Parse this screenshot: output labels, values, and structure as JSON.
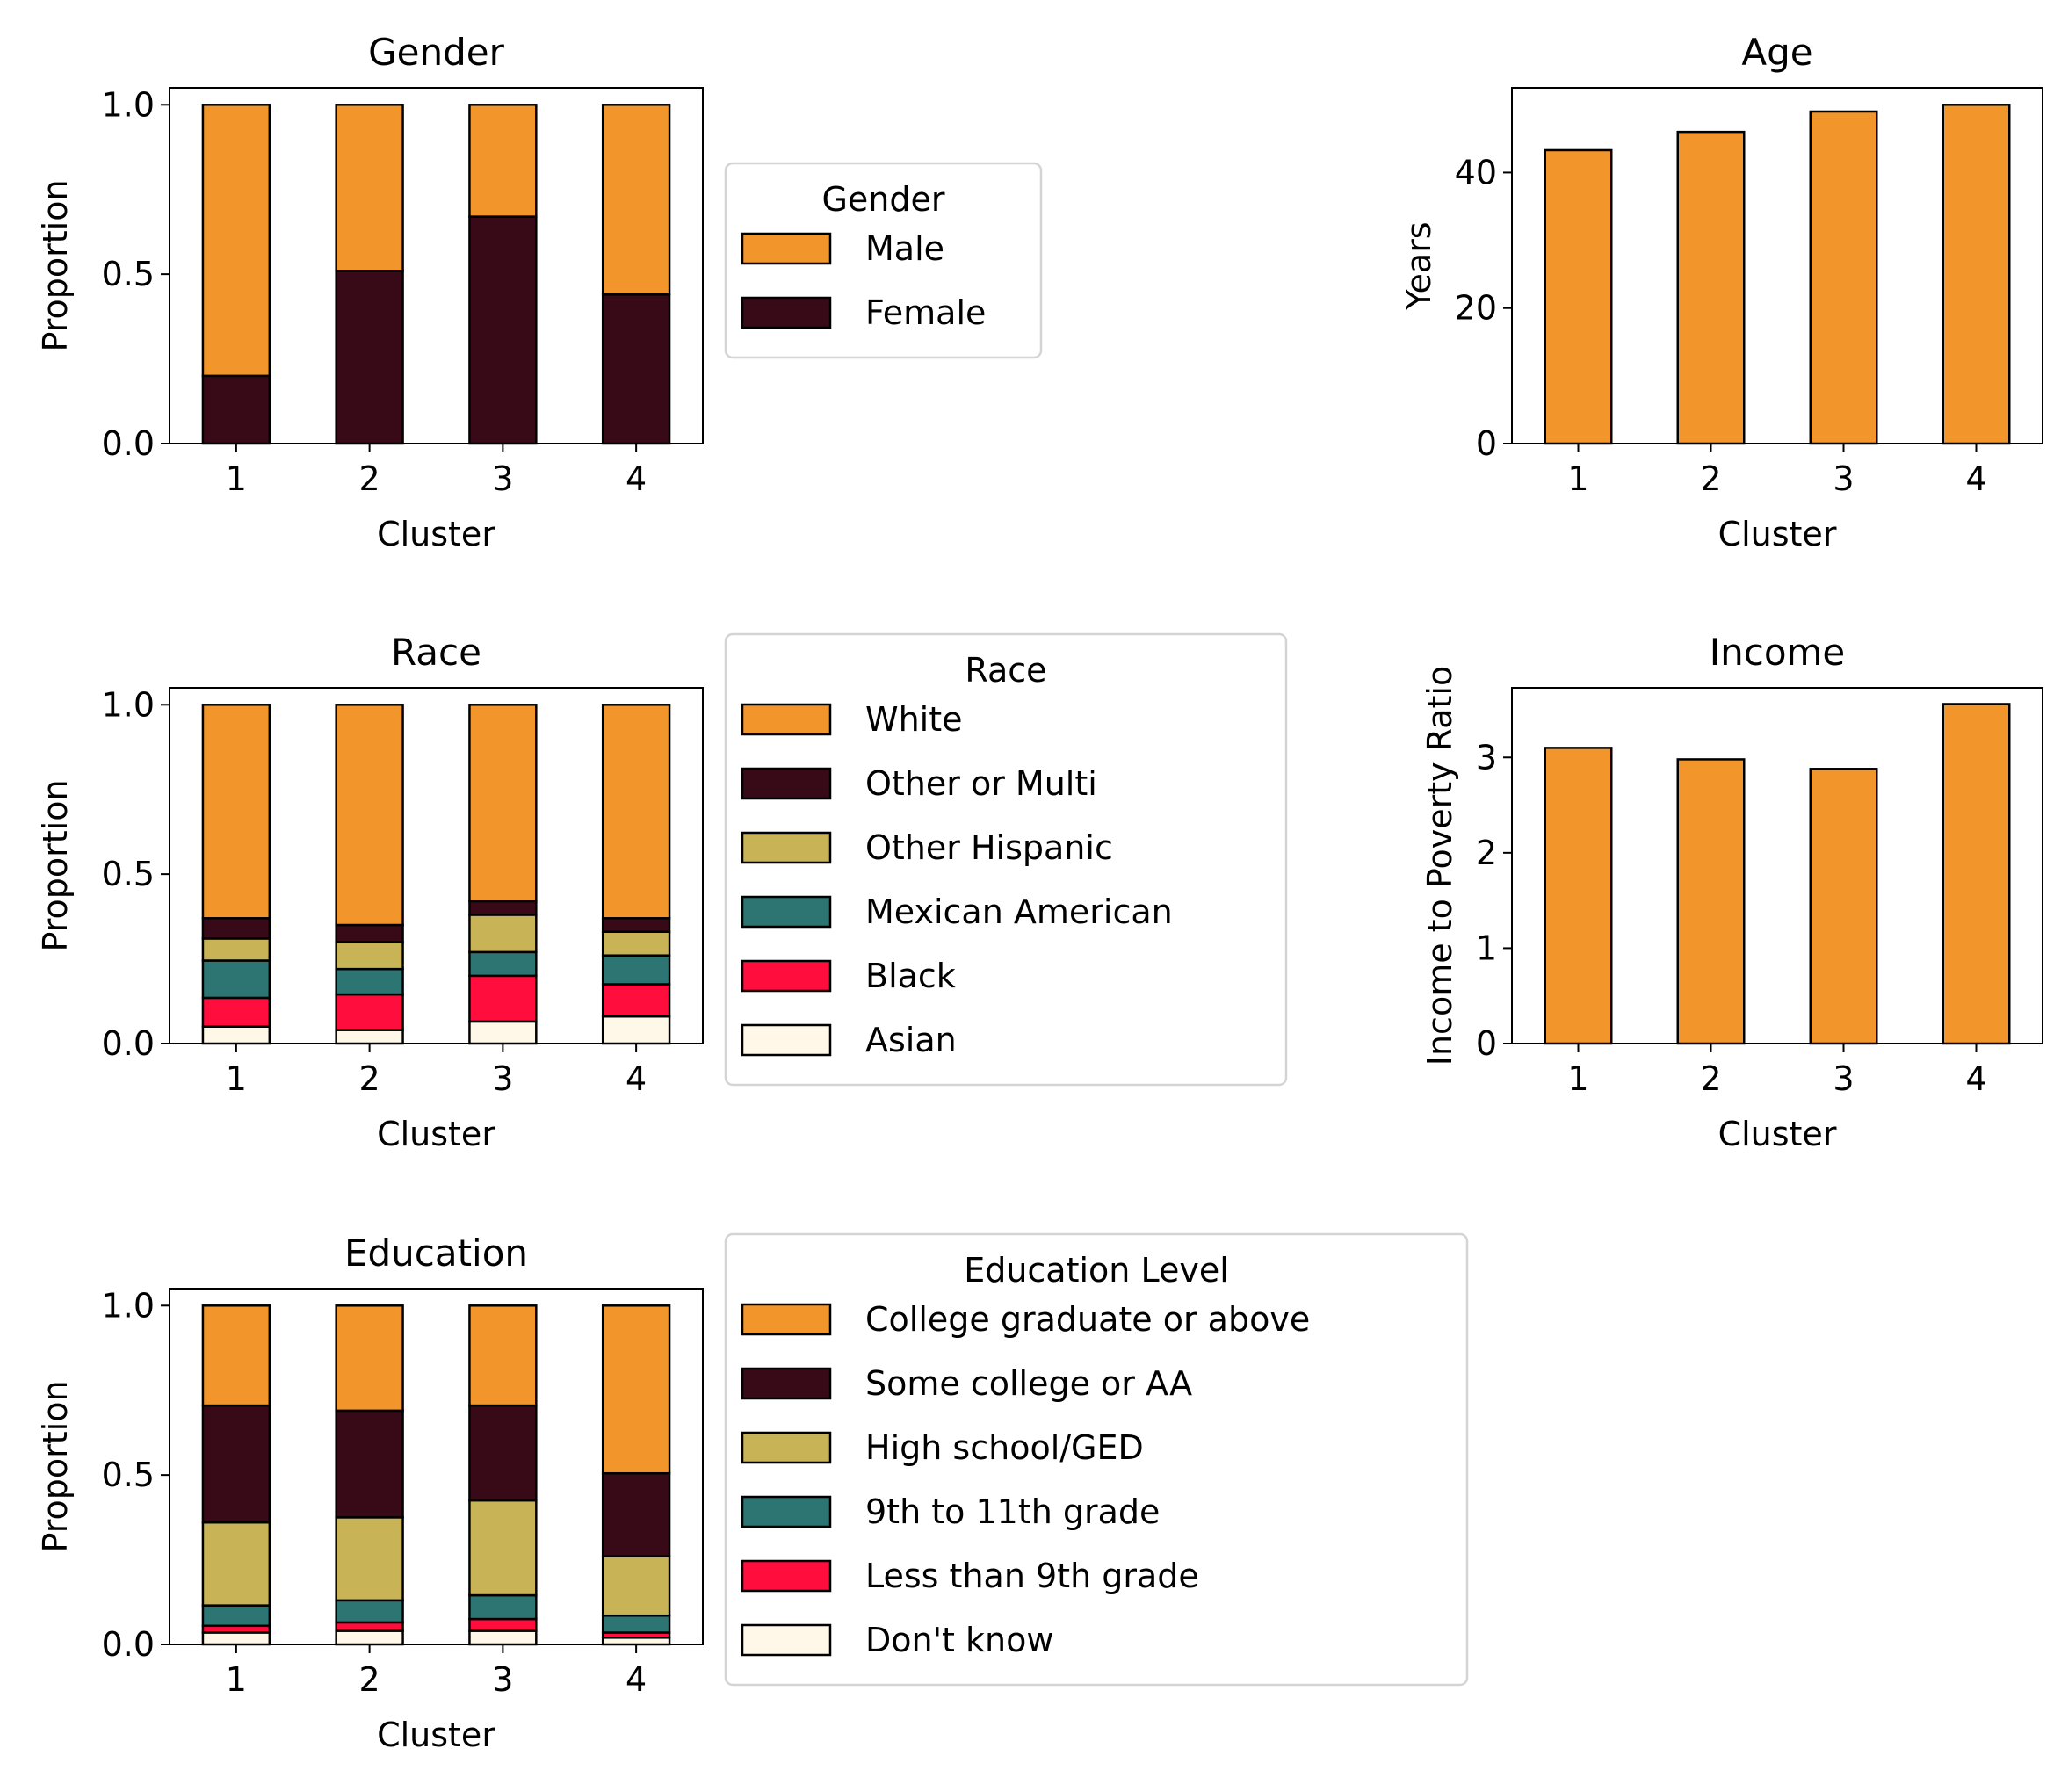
{
  "palette": {
    "orange": "#F2952A",
    "dark_maroon": "#380A17",
    "olive": "#C8B357",
    "teal": "#2C7573",
    "red": "#FF0D3D",
    "cream": "#FFF8E8",
    "edge": "#000000"
  },
  "chart_data": [
    {
      "id": "gender",
      "type": "bar",
      "stacked": true,
      "title": "Gender",
      "xlabel": "Cluster",
      "ylabel": "Proportion",
      "categories": [
        "1",
        "2",
        "3",
        "4"
      ],
      "ylim": [
        0,
        1.05
      ],
      "yticks": [
        0.0,
        0.5,
        1.0
      ],
      "ytick_labels": [
        "0.0",
        "0.5",
        "1.0"
      ],
      "legend": {
        "title": "Gender",
        "placement": "right"
      },
      "series": [
        {
          "name": "Female",
          "color": "#380A17",
          "values": [
            0.2,
            0.51,
            0.67,
            0.44
          ]
        },
        {
          "name": "Male",
          "color": "#F2952A",
          "values": [
            0.8,
            0.49,
            0.33,
            0.56
          ]
        }
      ]
    },
    {
      "id": "race",
      "type": "bar",
      "stacked": true,
      "title": "Race",
      "xlabel": "Cluster",
      "ylabel": "Proportion",
      "categories": [
        "1",
        "2",
        "3",
        "4"
      ],
      "ylim": [
        0,
        1.05
      ],
      "yticks": [
        0.0,
        0.5,
        1.0
      ],
      "ytick_labels": [
        "0.0",
        "0.5",
        "1.0"
      ],
      "legend": {
        "title": "Race",
        "placement": "right"
      },
      "series": [
        {
          "name": "Asian",
          "color": "#FFF8E8",
          "values": [
            0.05,
            0.04,
            0.065,
            0.08
          ]
        },
        {
          "name": "Black",
          "color": "#FF0D3D",
          "values": [
            0.085,
            0.105,
            0.135,
            0.095
          ]
        },
        {
          "name": "Mexican American",
          "color": "#2C7573",
          "values": [
            0.11,
            0.075,
            0.07,
            0.085
          ]
        },
        {
          "name": "Other Hispanic",
          "color": "#C8B357",
          "values": [
            0.065,
            0.08,
            0.11,
            0.07
          ]
        },
        {
          "name": "Other or Multi",
          "color": "#380A17",
          "values": [
            0.06,
            0.05,
            0.04,
            0.04
          ]
        },
        {
          "name": "White",
          "color": "#F2952A",
          "values": [
            0.63,
            0.65,
            0.58,
            0.63
          ]
        }
      ]
    },
    {
      "id": "education",
      "type": "bar",
      "stacked": true,
      "title": "Education",
      "xlabel": "Cluster",
      "ylabel": "Proportion",
      "categories": [
        "1",
        "2",
        "3",
        "4"
      ],
      "ylim": [
        0,
        1.05
      ],
      "yticks": [
        0.0,
        0.5,
        1.0
      ],
      "ytick_labels": [
        "0.0",
        "0.5",
        "1.0"
      ],
      "legend": {
        "title": "Education Level",
        "placement": "right"
      },
      "series": [
        {
          "name": "Don't know",
          "color": "#FFF8E8",
          "values": [
            0.035,
            0.04,
            0.04,
            0.02
          ]
        },
        {
          "name": "Less than 9th grade",
          "color": "#FF0D3D",
          "values": [
            0.02,
            0.025,
            0.035,
            0.015
          ]
        },
        {
          "name": "9th to 11th grade",
          "color": "#2C7573",
          "values": [
            0.06,
            0.065,
            0.07,
            0.05
          ]
        },
        {
          "name": "High school/GED",
          "color": "#C8B357",
          "values": [
            0.245,
            0.245,
            0.28,
            0.175
          ]
        },
        {
          "name": "Some college or AA",
          "color": "#380A17",
          "values": [
            0.345,
            0.315,
            0.28,
            0.245
          ]
        },
        {
          "name": "College graduate or above",
          "color": "#F2952A",
          "values": [
            0.295,
            0.31,
            0.295,
            0.495
          ]
        }
      ]
    },
    {
      "id": "age",
      "type": "bar",
      "stacked": false,
      "title": "Age",
      "xlabel": "Cluster",
      "ylabel": "Years",
      "categories": [
        "1",
        "2",
        "3",
        "4"
      ],
      "ylim": [
        0,
        52.5
      ],
      "yticks": [
        0,
        20,
        40
      ],
      "ytick_labels": [
        "0",
        "20",
        "40"
      ],
      "series": [
        {
          "color": "#F2952A",
          "values": [
            43.3,
            46.0,
            49.0,
            50.0
          ]
        }
      ]
    },
    {
      "id": "income",
      "type": "bar",
      "stacked": false,
      "title": "Income",
      "xlabel": "Cluster",
      "ylabel": "Income to Poverty Ratio",
      "categories": [
        "1",
        "2",
        "3",
        "4"
      ],
      "ylim": [
        0,
        3.73
      ],
      "yticks": [
        0,
        1,
        2,
        3
      ],
      "ytick_labels": [
        "0",
        "1",
        "2",
        "3"
      ],
      "series": [
        {
          "color": "#F2952A",
          "values": [
            3.1,
            2.98,
            2.88,
            3.56
          ]
        }
      ]
    }
  ]
}
